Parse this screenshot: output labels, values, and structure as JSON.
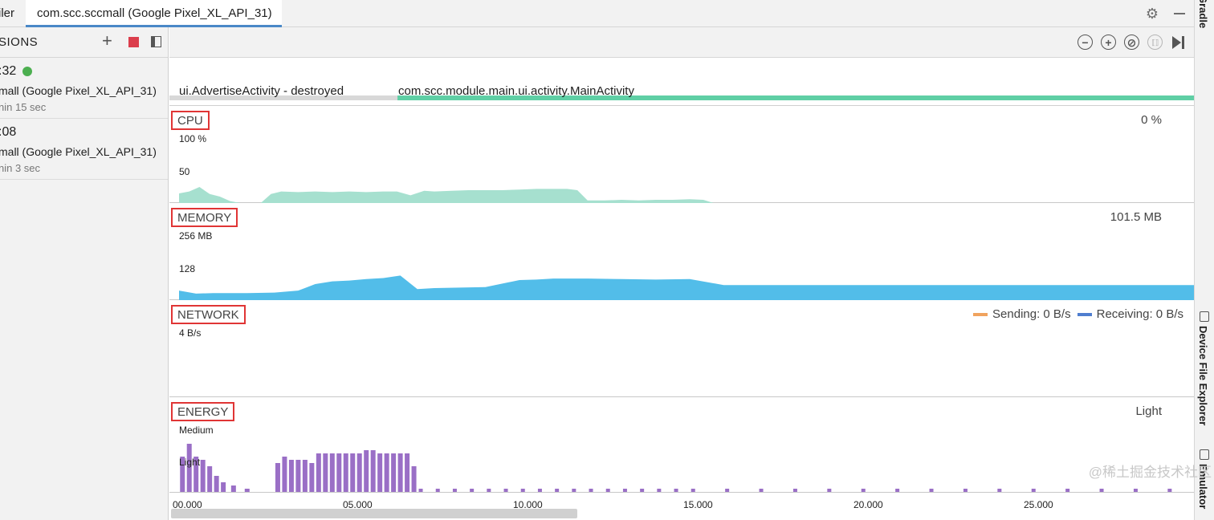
{
  "tabs": [
    {
      "label": "iler"
    },
    {
      "label": "com.scc.sccmall (Google Pixel_XL_API_31)",
      "active": true
    }
  ],
  "tab_actions": {
    "settings_icon": "gear-icon",
    "minimize_icon": "minimize-icon"
  },
  "right_strip": {
    "items": [
      {
        "label": "Gradle"
      },
      {
        "label": "Device File Explorer"
      },
      {
        "label": "Emulator"
      }
    ]
  },
  "sessions": {
    "title": "SIONS",
    "add_label": "+",
    "items": [
      {
        "time": ":32",
        "active": true,
        "name": "mall (Google Pixel_XL_API_31)",
        "duration": "nin 15 sec"
      },
      {
        "time": ":08",
        "active": false,
        "name": "mall (Google Pixel_XL_API_31)",
        "duration": "nin 3 sec"
      }
    ]
  },
  "zoom_controls": {
    "zoom_out": "−",
    "zoom_in": "+",
    "reset": "⊘",
    "attach": "⟦⟧"
  },
  "activities": [
    {
      "label": "ui.AdvertiseActivity - destroyed",
      "state": "destroyed",
      "start": 0,
      "end": 6.7
    },
    {
      "label": "com.scc.module.main.ui.activity.MainActivity",
      "state": "active",
      "start": 6.7,
      "end": 30
    }
  ],
  "tracks": {
    "cpu": {
      "label": "CPU",
      "value": "0 %",
      "axis": [
        "100 %",
        "50"
      ]
    },
    "memory": {
      "label": "MEMORY",
      "value": "101.5 MB",
      "axis": [
        "256 MB",
        "128"
      ]
    },
    "network": {
      "label": "NETWORK",
      "axis": [
        "4 B/s"
      ],
      "legend": [
        {
          "label": "Sending: 0 B/s",
          "color": "#f0a35e"
        },
        {
          "label": "Receiving: 0 B/s",
          "color": "#4f7ecf"
        }
      ]
    },
    "energy": {
      "label": "ENERGY",
      "value": "Light",
      "axis": [
        "Medium",
        "Light"
      ]
    }
  },
  "colors": {
    "cpu": "#a6e0cf",
    "memory": "#52bde9",
    "energy": "#9a6fc6",
    "activity_active": "#5fcfa5",
    "activity_destroyed": "#d8d8d8"
  },
  "time_axis": [
    "00.000",
    "05.000",
    "10.000",
    "15.000",
    "20.000",
    "25.000"
  ],
  "chart_data": [
    {
      "type": "area",
      "title": "CPU",
      "ylabel": "",
      "ylim": [
        0,
        100
      ],
      "x": [
        0,
        0.3,
        0.6,
        0.9,
        1.2,
        1.5,
        1.8,
        2.4,
        2.7,
        3.0,
        3.5,
        4.0,
        4.5,
        5.0,
        5.5,
        6.0,
        6.4,
        6.8,
        7.2,
        7.5,
        8.0,
        8.5,
        9.0,
        9.5,
        10.0,
        10.5,
        11.0,
        11.4,
        11.7,
        12.0,
        12.5,
        13.0,
        13.5,
        14.0,
        14.5,
        15.0,
        15.4,
        15.7
      ],
      "values": [
        15,
        18,
        25,
        14,
        10,
        3,
        0,
        0,
        14,
        18,
        17,
        18,
        17,
        18,
        17,
        18,
        18,
        12,
        19,
        18,
        19,
        20,
        20,
        20,
        21,
        22,
        22,
        22,
        20,
        4,
        4,
        5,
        4,
        5,
        5,
        6,
        5,
        0
      ]
    },
    {
      "type": "area",
      "title": "MEMORY",
      "ylim": [
        0,
        256
      ],
      "x": [
        0,
        0.5,
        1.0,
        2.0,
        2.8,
        3.5,
        4.0,
        4.5,
        5.0,
        5.5,
        6.0,
        6.5,
        7.0,
        7.5,
        9.0,
        10.0,
        10.5,
        11.0,
        12.0,
        13.0,
        14.0,
        15.0,
        16.0,
        20.0,
        25.0,
        30.0
      ],
      "values": [
        38,
        26,
        28,
        28,
        30,
        38,
        64,
        75,
        78,
        84,
        88,
        98,
        44,
        48,
        52,
        80,
        82,
        86,
        86,
        84,
        82,
        84,
        60,
        60,
        60,
        60
      ]
    },
    {
      "type": "bar",
      "title": "ENERGY",
      "ylim": [
        0,
        2
      ],
      "x": [
        0.1,
        0.3,
        0.5,
        0.7,
        0.9,
        1.1,
        1.3,
        1.6,
        2.0,
        2.9,
        3.1,
        3.3,
        3.5,
        3.7,
        3.9,
        4.1,
        4.3,
        4.5,
        4.7,
        4.9,
        5.1,
        5.3,
        5.5,
        5.7,
        5.9,
        6.1,
        6.3,
        6.5,
        6.7,
        6.9
      ],
      "values": [
        1.1,
        1.5,
        1.1,
        1.0,
        0.8,
        0.5,
        0.3,
        0.2,
        0.1,
        0.9,
        1.1,
        1.0,
        1.0,
        1.0,
        0.9,
        1.2,
        1.2,
        1.2,
        1.2,
        1.2,
        1.2,
        1.2,
        1.3,
        1.3,
        1.2,
        1.2,
        1.2,
        1.2,
        1.2,
        0.8
      ]
    }
  ],
  "watermark": "@稀土掘金技术社区"
}
